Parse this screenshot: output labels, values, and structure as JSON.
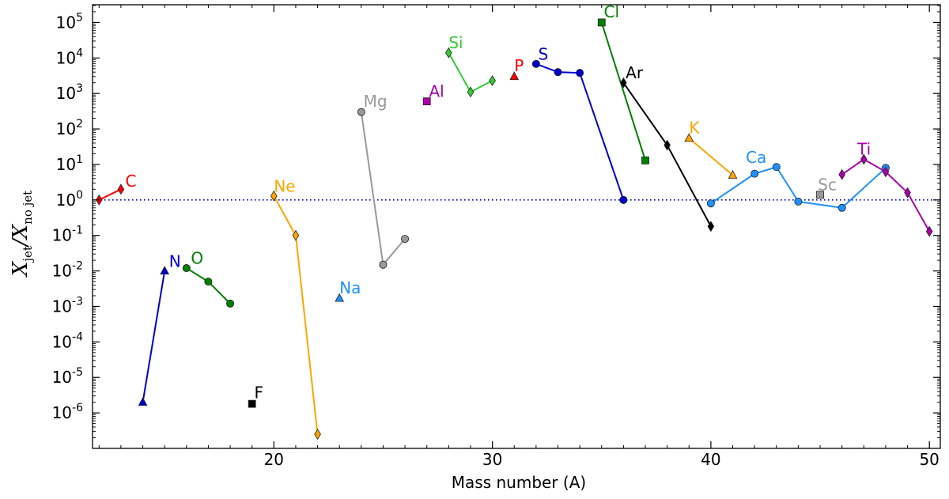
{
  "chart_data": {
    "type": "line",
    "xlabel": "Mass number (A)",
    "ylabel_main": "X",
    "ylabel_num_sub": "jet",
    "ylabel_den_sub": "no jet",
    "xlim": [
      11.7,
      50.5
    ],
    "ylim_log10": [
      -7,
      5.5
    ],
    "x_ticks": [
      20,
      30,
      40,
      50
    ],
    "x_tick_labels": [
      "20",
      "30",
      "40",
      "50"
    ],
    "y_ticks_log10": [
      -6,
      -5,
      -4,
      -3,
      -2,
      -1,
      0,
      1,
      2,
      3,
      4,
      5
    ],
    "y_tick_base": "10",
    "y_tick_exponents": [
      "-6",
      "-5",
      "-4",
      "-3",
      "-2",
      "-1",
      "0",
      "1",
      "2",
      "3",
      "4",
      "5"
    ],
    "reference_line_y": 1,
    "reference_line_color": "#0000cc",
    "series": [
      {
        "name": "C",
        "color": "#ff0000",
        "marker": "diamond",
        "points": [
          [
            12,
            1.0
          ],
          [
            13,
            2.0
          ]
        ],
        "label_at": [
          13.2,
          2.4
        ]
      },
      {
        "name": "N",
        "color": "#0000cc",
        "marker": "triangle",
        "points": [
          [
            14,
            2e-06
          ],
          [
            15,
            0.01
          ]
        ],
        "label_at": [
          15.2,
          0.013
        ]
      },
      {
        "name": "O",
        "color": "#008000",
        "marker": "circle",
        "points": [
          [
            16,
            0.012
          ],
          [
            17,
            0.005
          ],
          [
            18,
            0.0012
          ]
        ],
        "label_at": [
          16.2,
          0.016
        ]
      },
      {
        "name": "F",
        "color": "#000000",
        "marker": "square",
        "points": [
          [
            19,
            1.8e-06
          ]
        ],
        "label_at": [
          19.1,
          2.6e-06
        ]
      },
      {
        "name": "Ne",
        "color": "#ffa500",
        "marker": "diamond",
        "points": [
          [
            20,
            1.3
          ],
          [
            21,
            0.1
          ],
          [
            22,
            2.5e-07
          ]
        ],
        "label_at": [
          20.0,
          1.7
        ]
      },
      {
        "name": "Na",
        "color": "#1e90ff",
        "marker": "triangle",
        "points": [
          [
            23,
            0.0017
          ]
        ],
        "label_at": [
          23.0,
          0.0023
        ]
      },
      {
        "name": "Mg",
        "color": "#999999",
        "marker": "circle",
        "points": [
          [
            24,
            300
          ],
          [
            25,
            0.015
          ],
          [
            26,
            0.08
          ]
        ],
        "label_at": [
          24.1,
          420
        ]
      },
      {
        "name": "Al",
        "color": "#aa00aa",
        "marker": "square",
        "points": [
          [
            27,
            600
          ]
        ],
        "label_at": [
          27.1,
          800
        ]
      },
      {
        "name": "Si",
        "color": "#33cc33",
        "marker": "diamond",
        "points": [
          [
            28,
            14000
          ],
          [
            29,
            1100
          ],
          [
            30,
            2300
          ]
        ],
        "label_at": [
          28.0,
          19000
        ]
      },
      {
        "name": "P",
        "color": "#ff0000",
        "marker": "triangle",
        "points": [
          [
            31,
            3000
          ]
        ],
        "label_at": [
          31.0,
          4200
        ]
      },
      {
        "name": "S",
        "color": "#0000cc",
        "marker": "circle",
        "points": [
          [
            32,
            6800
          ],
          [
            33,
            4000
          ],
          [
            34,
            3800
          ],
          [
            36,
            1.0
          ]
        ],
        "label_at": [
          32.1,
          9000
        ]
      },
      {
        "name": "Cl",
        "color": "#008000",
        "marker": "square",
        "points": [
          [
            35,
            100000
          ],
          [
            37,
            13
          ]
        ],
        "label_at": [
          35.1,
          140000
        ]
      },
      {
        "name": "Ar",
        "color": "#000000",
        "marker": "diamond",
        "points": [
          [
            36,
            2000
          ],
          [
            38,
            35
          ],
          [
            40,
            0.18
          ]
        ],
        "label_at": [
          36.1,
          2700
        ]
      },
      {
        "name": "K",
        "color": "#ffa500",
        "marker": "triangle",
        "points": [
          [
            39,
            55
          ],
          [
            41,
            5.0
          ]
        ],
        "label_at": [
          39.0,
          75
        ]
      },
      {
        "name": "Ca",
        "color": "#1e90ff",
        "marker": "circle",
        "points": [
          [
            40,
            0.8
          ],
          [
            42,
            5.5
          ],
          [
            43,
            8.5
          ],
          [
            44,
            0.9
          ],
          [
            46,
            0.6
          ],
          [
            48,
            8.0
          ]
        ],
        "label_at": [
          41.6,
          11
        ]
      },
      {
        "name": "Sc",
        "color": "#999999",
        "marker": "square",
        "points": [
          [
            45,
            1.4
          ]
        ],
        "label_at": [
          44.9,
          1.9
        ]
      },
      {
        "name": "Ti",
        "color": "#aa00aa",
        "marker": "diamond",
        "points": [
          [
            46,
            5.2
          ],
          [
            47,
            14
          ],
          [
            48,
            6.2
          ],
          [
            49,
            1.6
          ],
          [
            50,
            0.13
          ]
        ],
        "label_at": [
          46.7,
          19
        ]
      }
    ]
  }
}
